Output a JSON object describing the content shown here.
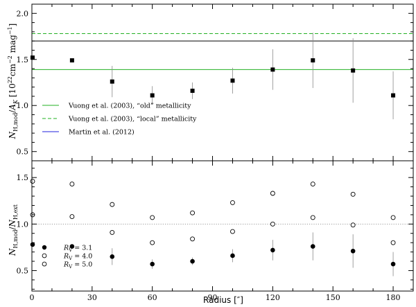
{
  "chart_data": [
    {
      "type": "scatter",
      "panel": "top",
      "ylabel": "N_H,mod/A_K [10^22 cm^-2 mag^-1]",
      "ylabel_parts": {
        "n": "N",
        "sub": "H,mod",
        "over": "/",
        "a": "A",
        "asub": "K",
        "bracket_open": " [10",
        "exp1": "22",
        "cm": "cm",
        "exp2": "−2",
        "mag": " mag",
        "exp3": "−1",
        "bracket_close": "]"
      },
      "xlim": [
        0,
        190
      ],
      "ylim": [
        0.4,
        2.1
      ],
      "yticks": [
        0.5,
        1.0,
        1.5,
        2.0
      ],
      "ytick_labels": [
        "0.5",
        "1.0",
        "1.5",
        "2.0"
      ],
      "series": [
        {
          "marker": "filled-square",
          "x": [
            0,
            20,
            40,
            60,
            80,
            100,
            120,
            140,
            160,
            180
          ],
          "y": [
            1.52,
            1.49,
            1.26,
            1.11,
            1.16,
            1.27,
            1.39,
            1.49,
            1.38,
            1.11
          ],
          "yerr": [
            0.0,
            0.0,
            0.17,
            0.1,
            0.09,
            0.14,
            0.22,
            0.3,
            0.35,
            0.26
          ]
        }
      ],
      "reference_lines": [
        {
          "y": 1.39,
          "color": "#22b022",
          "style": "solid"
        },
        {
          "y": 1.78,
          "color": "#22b022",
          "style": "dashed"
        },
        {
          "y": 1.7,
          "color": "#000000",
          "style": "solid"
        }
      ],
      "legend": {
        "placement": "bottom-left",
        "entries": [
          {
            "label": "Vuong et al. (2003), “old” metallicity",
            "color": "#22b022",
            "style": "solid"
          },
          {
            "label": "Vuong et al. (2003), “local” metallicity",
            "color": "#22b022",
            "style": "dashed"
          },
          {
            "label": "Martin et al. (2012)",
            "color": "#2222dd",
            "style": "solid"
          }
        ]
      }
    },
    {
      "type": "scatter",
      "panel": "bottom",
      "xlabel": "Radius [″]",
      "ylabel": "N_H,mod/N_H,ext",
      "ylabel_parts": {
        "n1": "N",
        "sub1": "H,mod",
        "over": "/",
        "n2": "N",
        "sub2": "H,ext"
      },
      "xlim": [
        0,
        190
      ],
      "ylim": [
        0.28,
        1.68
      ],
      "xticks": [
        0,
        30,
        60,
        90,
        120,
        150,
        180
      ],
      "xtick_labels": [
        "0",
        "30",
        "60",
        "90",
        "120",
        "150",
        "180"
      ],
      "yticks": [
        0.5,
        1.0,
        1.5
      ],
      "ytick_labels": [
        "0.5",
        "1.0",
        "1.5"
      ],
      "reference_lines": [
        {
          "y": 1.0,
          "color": "#999999",
          "style": "dotted"
        }
      ],
      "series": [
        {
          "name_parts": {
            "r": "R",
            "sub": "V",
            "eq": " = 3.1"
          },
          "marker": "filled-circle",
          "x": [
            0,
            20,
            40,
            60,
            80,
            100,
            120,
            140,
            160,
            180
          ],
          "y": [
            0.78,
            0.76,
            0.65,
            0.57,
            0.6,
            0.66,
            0.72,
            0.76,
            0.71,
            0.57
          ],
          "yerr": [
            0.0,
            0.0,
            0.09,
            0.05,
            0.04,
            0.07,
            0.11,
            0.15,
            0.18,
            0.13
          ]
        },
        {
          "name_parts": {
            "r": "R",
            "sub": "V",
            "eq": " = 4.0"
          },
          "marker": "open-circle",
          "x": [
            0,
            20,
            40,
            60,
            80,
            100,
            120,
            140,
            160,
            180
          ],
          "y": [
            1.1,
            1.08,
            0.91,
            0.8,
            0.84,
            0.92,
            1.0,
            1.07,
            0.99,
            0.8
          ],
          "yerr": null
        },
        {
          "name_parts": {
            "r": "R",
            "sub": "V",
            "eq": " = 5.0"
          },
          "marker": "open-circle",
          "x": [
            0,
            20,
            40,
            60,
            80,
            100,
            120,
            140,
            160,
            180
          ],
          "y": [
            1.46,
            1.43,
            1.21,
            1.07,
            1.12,
            1.23,
            1.33,
            1.43,
            1.32,
            1.07
          ],
          "yerr": null
        }
      ],
      "legend": {
        "placement": "bottom-left"
      }
    }
  ]
}
